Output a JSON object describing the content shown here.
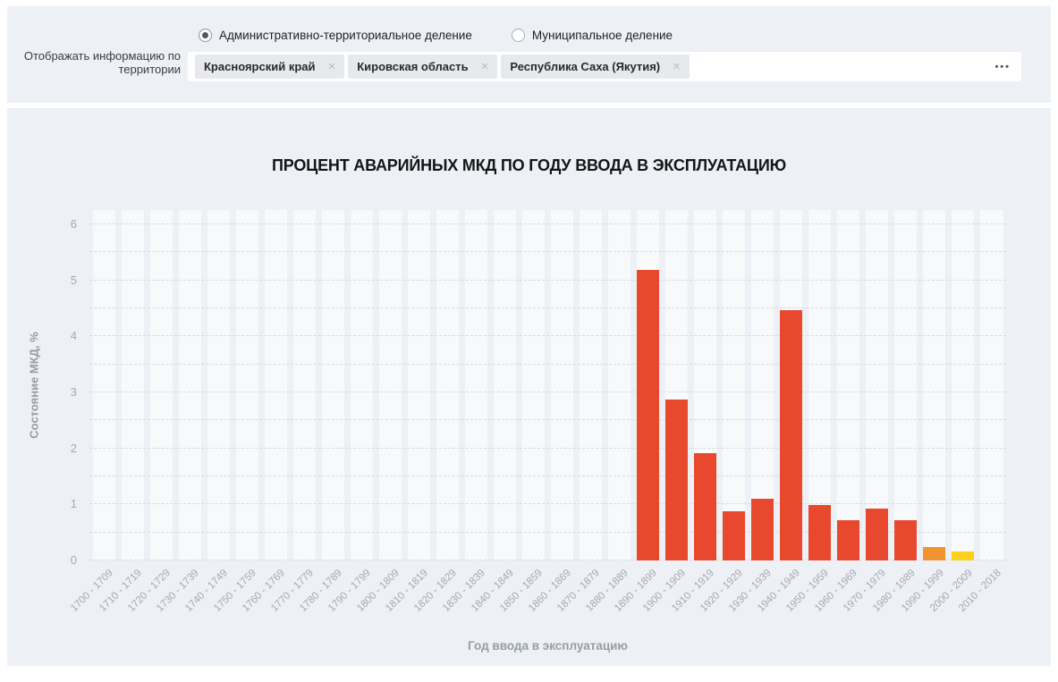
{
  "filter_bar": {
    "label_line1": "Отображать информацию по",
    "label_line2": "территории",
    "radios": [
      {
        "label": "Административно-территориальное деление",
        "selected": true
      },
      {
        "label": "Муниципальное деление",
        "selected": false
      }
    ],
    "tags": [
      "Красноярский край",
      "Кировская область",
      "Республика Саха (Якутия)"
    ],
    "tag_close_glyph": "×",
    "more_label": "•••"
  },
  "chart_data": {
    "type": "bar",
    "title": "ПРОЦЕНТ АВАРИЙНЫХ МКД ПО ГОДУ ВВОДА В ЭКСПЛУАТАЦИЮ",
    "xlabel": "Год ввода в эксплуатацию",
    "ylabel": "Состояние МКД, %",
    "ylim": [
      0,
      6
    ],
    "ytick_step": 1,
    "grid_step": 0.5,
    "grid": "horizontal-dashed",
    "legend": "none",
    "categories": [
      "1700 - 1709",
      "1710 - 1719",
      "1720 - 1729",
      "1730 - 1739",
      "1740 - 1749",
      "1750 - 1759",
      "1760 - 1769",
      "1770 - 1779",
      "1780 - 1789",
      "1790 - 1799",
      "1800 - 1809",
      "1810 - 1819",
      "1820 - 1829",
      "1830 - 1839",
      "1840 - 1849",
      "1850 - 1859",
      "1860 - 1869",
      "1870 - 1879",
      "1880 - 1889",
      "1890 - 1899",
      "1900 - 1909",
      "1910 - 1919",
      "1920 - 1929",
      "1930 - 1939",
      "1940 - 1949",
      "1950 - 1959",
      "1960 - 1969",
      "1970 - 1979",
      "1980 - 1989",
      "1990 - 1999",
      "2000 - 2009",
      "2010 - 2018"
    ],
    "values": [
      0,
      0,
      0,
      0,
      0,
      0,
      0,
      0,
      0,
      0,
      0,
      0,
      0,
      0,
      0,
      0,
      0,
      0,
      0,
      5.18,
      2.87,
      1.91,
      0.87,
      1.1,
      4.46,
      0.99,
      0.71,
      0.93,
      0.72,
      0.24,
      0.16,
      0
    ],
    "bar_colors": [
      "#e8492e",
      "#e8492e",
      "#e8492e",
      "#e8492e",
      "#e8492e",
      "#e8492e",
      "#e8492e",
      "#e8492e",
      "#e8492e",
      "#e8492e",
      "#e8492e",
      "#e8492e",
      "#e8492e",
      "#e8492e",
      "#e8492e",
      "#e8492e",
      "#e8492e",
      "#e8492e",
      "#e8492e",
      "#e8492e",
      "#e8492e",
      "#e8492e",
      "#e8492e",
      "#e8492e",
      "#e8492e",
      "#e8492e",
      "#e8492e",
      "#e8492e",
      "#e8492e",
      "#f09432",
      "#fdd01b",
      "#e8492e"
    ]
  },
  "colors": {
    "panel_bg": "#edf0f4",
    "band_bg": "#f7f9fb",
    "gridline": "#d6d9de",
    "bar_default": "#e8492e",
    "bar_orange": "#f09432",
    "bar_yellow": "#fdd01b"
  }
}
